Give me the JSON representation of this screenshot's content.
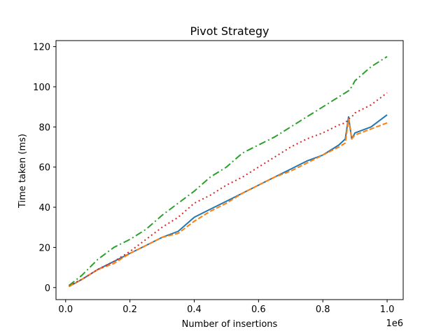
{
  "chart_data": {
    "type": "line",
    "title": "Pivot Strategy",
    "xlabel": "Number of insertions",
    "ylabel": "Time taken (ms)",
    "x_offset_label": "1e6",
    "xlim": [
      -0.03,
      1.05
    ],
    "ylim": [
      -6,
      123
    ],
    "x_ticks": [
      0.0,
      0.2,
      0.4,
      0.6,
      0.8,
      1.0
    ],
    "x_tick_labels": [
      "0.0",
      "0.2",
      "0.4",
      "0.6",
      "0.8",
      "1.0"
    ],
    "y_ticks": [
      0,
      20,
      40,
      60,
      80,
      100,
      120
    ],
    "y_tick_labels": [
      "0",
      "20",
      "40",
      "60",
      "80",
      "100",
      "120"
    ],
    "grid": false,
    "legend": "none",
    "x": [
      0.01,
      0.05,
      0.1,
      0.15,
      0.2,
      0.25,
      0.3,
      0.35,
      0.4,
      0.45,
      0.5,
      0.55,
      0.6,
      0.65,
      0.7,
      0.75,
      0.8,
      0.85,
      0.87,
      0.88,
      0.89,
      0.9,
      0.95,
      1.0
    ],
    "series": [
      {
        "color": "#1f77b4",
        "dash": "solid",
        "values": [
          0.5,
          4,
          9,
          13,
          17,
          21,
          25,
          28,
          35,
          39,
          43,
          47,
          51,
          55,
          59,
          63,
          66,
          71,
          74,
          85,
          74,
          77,
          80,
          86
        ]
      },
      {
        "color": "#ff7f0e",
        "dash": "dashed",
        "values": [
          0.5,
          4,
          9,
          12,
          17,
          21,
          25,
          27,
          33,
          38,
          42,
          47,
          51,
          55,
          58,
          62,
          66,
          70,
          72,
          84,
          74,
          76,
          79,
          82
        ]
      },
      {
        "color": "#d62728",
        "dash": "dotted",
        "values": [
          1,
          4,
          9,
          13,
          18,
          24,
          30,
          35,
          42,
          46,
          51,
          55,
          60,
          65,
          70,
          74,
          77,
          81,
          82,
          84,
          85,
          87,
          91,
          97
        ]
      },
      {
        "color": "#2ca02c",
        "dash": "dashdot",
        "values": [
          1,
          6,
          14,
          20,
          24,
          29,
          36,
          42,
          48,
          55,
          60,
          67,
          71,
          75,
          80,
          85,
          90,
          95,
          97,
          98,
          100,
          103,
          110,
          115
        ]
      }
    ]
  }
}
